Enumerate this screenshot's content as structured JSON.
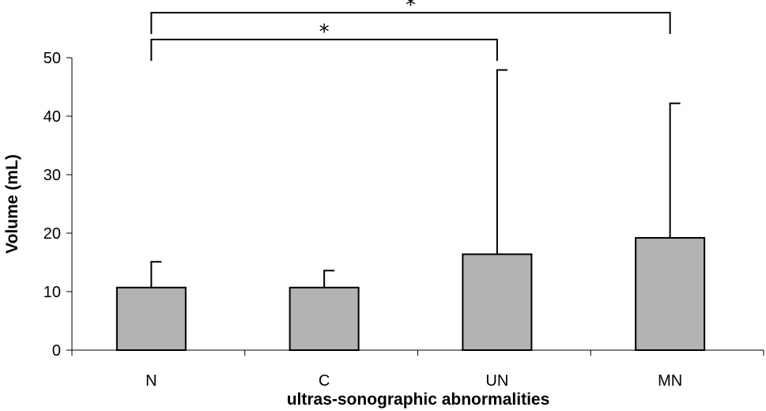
{
  "chart_data": {
    "type": "bar",
    "title": "",
    "xlabel": "ultras-sonographic abnormalities",
    "ylabel": "Volume (mL)",
    "categories": [
      "N",
      "C",
      "UN",
      "MN"
    ],
    "values": [
      10.7,
      10.7,
      16.4,
      19.2
    ],
    "error_upper": [
      15.1,
      13.6,
      47.9,
      42.2
    ],
    "ylim": [
      0,
      50
    ],
    "yticks": [
      0,
      10,
      20,
      30,
      40,
      50
    ],
    "grid": false,
    "legend": "none",
    "bar_color": "#b3b3b3",
    "significance": [
      {
        "from": "N",
        "to": "UN",
        "label": "*"
      },
      {
        "from": "N",
        "to": "MN",
        "label": "*"
      }
    ]
  }
}
